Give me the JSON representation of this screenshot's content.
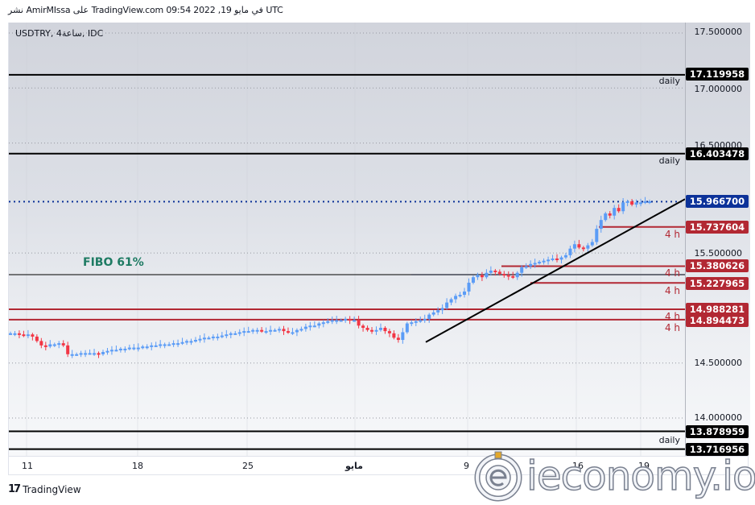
{
  "header": {
    "published_line": "نشر AmirMIssa على TradingView.com 09:54 2022 ,19 في مايو UTC"
  },
  "symbol": {
    "title": "USDTRY, 4ساعة, IDC"
  },
  "price_axis": {
    "ticks": [
      "17.500000",
      "17.000000",
      "16.500000",
      "15.500000",
      "14.500000",
      "14.000000"
    ]
  },
  "time_axis": {
    "ticks": [
      "11",
      "18",
      "25",
      "مايو",
      "9",
      "16",
      "19"
    ]
  },
  "levels": [
    {
      "value": "17.119958",
      "label": "daily",
      "color": "black"
    },
    {
      "value": "16.403478",
      "label": "daily",
      "color": "black"
    },
    {
      "value": "15.966700",
      "label": "",
      "color": "blue"
    },
    {
      "value": "15.737604",
      "label": "4 h",
      "color": "red"
    },
    {
      "value": "15.380626",
      "label": "4 h",
      "color": "red"
    },
    {
      "value": "15.227965",
      "label": "4 h",
      "color": "red"
    },
    {
      "value": "14.988281",
      "label": "4 h",
      "color": "red"
    },
    {
      "value": "14.894473",
      "label": "4 h",
      "color": "red"
    },
    {
      "value": "13.878959",
      "label": "daily",
      "color": "black"
    },
    {
      "value": "13.716956",
      "label": "",
      "color": "black"
    }
  ],
  "annotations": {
    "fibo": "FIBO 61%"
  },
  "footer": {
    "brand": "TradingView",
    "logo": "17"
  },
  "watermark": {
    "text": "ieconomy.io"
  },
  "colors": {
    "up": "#5b9cf6",
    "down": "#f23645",
    "level_red": "#b22833",
    "last_price": "#0c3299",
    "fibo": "#1e7b63"
  },
  "chart_data": {
    "type": "candlestick",
    "title": "USDTRY, 4h, IDC",
    "xlabel": "",
    "ylabel": "",
    "ylim": [
      13.7,
      17.62
    ],
    "x_ticks": [
      "11",
      "18",
      "25",
      "مايو",
      "9",
      "16",
      "19"
    ],
    "y_ticks": [
      17.5,
      17.0,
      16.5,
      15.5,
      14.5,
      14.0
    ],
    "last_price": 15.9667,
    "horizontal_levels": [
      {
        "price": 17.119958,
        "tag": "daily"
      },
      {
        "price": 16.403478,
        "tag": "daily"
      },
      {
        "price": 15.737604,
        "tag": "4 h"
      },
      {
        "price": 15.380626,
        "tag": "4 h"
      },
      {
        "price": 15.227965,
        "tag": "4 h"
      },
      {
        "price": 14.988281,
        "tag": "4 h"
      },
      {
        "price": 14.894473,
        "tag": "4 h"
      },
      {
        "price": 13.878959,
        "tag": "daily"
      },
      {
        "price": 13.716956,
        "tag": "daily"
      }
    ],
    "fibo_level": {
      "label": "FIBO 61%",
      "price": 15.31
    },
    "trendline": {
      "from": {
        "date": "May 6",
        "price": 14.69
      },
      "to": {
        "date": "May 20",
        "price": 15.96
      }
    },
    "close_series": [
      14.77,
      14.77,
      14.76,
      14.75,
      14.76,
      14.74,
      14.7,
      14.66,
      14.65,
      14.67,
      14.67,
      14.68,
      14.66,
      14.58,
      14.58,
      14.58,
      14.59,
      14.59,
      14.59,
      14.59,
      14.58,
      14.6,
      14.61,
      14.62,
      14.62,
      14.63,
      14.63,
      14.64,
      14.64,
      14.64,
      14.65,
      14.65,
      14.66,
      14.66,
      14.67,
      14.67,
      14.67,
      14.68,
      14.68,
      14.69,
      14.7,
      14.7,
      14.71,
      14.72,
      14.73,
      14.73,
      14.74,
      14.74,
      14.75,
      14.76,
      14.77,
      14.77,
      14.78,
      14.79,
      14.79,
      14.8,
      14.8,
      14.79,
      14.79,
      14.8,
      14.8,
      14.81,
      14.79,
      14.78,
      14.78,
      14.8,
      14.81,
      14.83,
      14.84,
      14.84,
      14.86,
      14.87,
      14.88,
      14.89,
      14.89,
      14.89,
      14.9,
      14.89,
      14.89,
      14.84,
      14.82,
      14.8,
      14.79,
      14.8,
      14.82,
      14.79,
      14.77,
      14.73,
      14.71,
      14.78,
      14.86,
      14.87,
      14.88,
      14.89,
      14.9,
      14.94,
      14.96,
      14.98,
      15.0,
      15.05,
      15.08,
      15.11,
      15.12,
      15.15,
      15.23,
      15.28,
      15.3,
      15.28,
      15.32,
      15.34,
      15.33,
      15.31,
      15.3,
      15.29,
      15.28,
      15.32,
      15.37,
      15.38,
      15.4,
      15.41,
      15.42,
      15.43,
      15.44,
      15.45,
      15.44,
      15.46,
      15.48,
      15.54,
      15.58,
      15.55,
      15.54,
      15.57,
      15.6,
      15.72,
      15.8,
      15.86,
      15.84,
      15.91,
      15.88,
      15.96,
      15.97,
      15.94,
      15.96,
      15.96,
      15.97,
      15.97
    ]
  }
}
